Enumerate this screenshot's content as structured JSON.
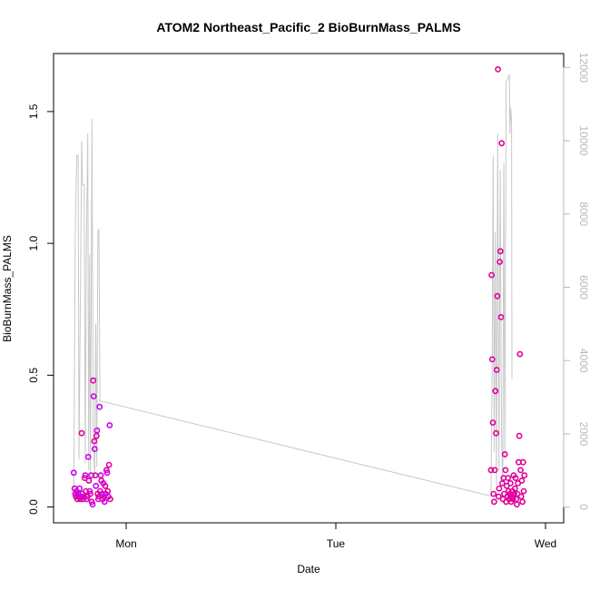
{
  "chart_data": {
    "type": "scatter",
    "title": "ATOM2 Northeast_Pacific_2 BioBurnMass_PALMS",
    "xlabel": "Date",
    "ylabel": "BioBurnMass_PALMS",
    "x_ticks": [
      "Mon",
      "Tue",
      "Wed"
    ],
    "ylim": [
      -0.06,
      1.72
    ],
    "y_ticks": [
      "0.0",
      "0.5",
      "1.0",
      "1.5"
    ],
    "y_tick_values": [
      0.0,
      0.5,
      1.0,
      1.5
    ],
    "y2lim": [
      -430,
      12380
    ],
    "y2_ticks": [
      "0",
      "2000",
      "4000",
      "6000",
      "8000",
      "10000",
      "12000"
    ],
    "y2_tick_values": [
      0,
      2000,
      4000,
      6000,
      8000,
      10000,
      12000
    ],
    "colors": {
      "points": "#e0009a",
      "points_alt": "#cc00ee",
      "line": "#c8c8c8",
      "axis_right": "#b8b8b8"
    },
    "series": [
      {
        "type": "scatter",
        "points": [
          [
            -0.25,
            0.13
          ],
          [
            -0.246,
            0.07
          ],
          [
            -0.243,
            0.05
          ],
          [
            -0.24,
            0.04
          ],
          [
            -0.237,
            0.06
          ],
          [
            -0.233,
            0.03
          ],
          [
            -0.23,
            0.05
          ],
          [
            -0.226,
            0.04
          ],
          [
            -0.222,
            0.07
          ],
          [
            -0.219,
            0.03
          ],
          [
            -0.215,
            0.04
          ],
          [
            -0.212,
            0.28
          ],
          [
            -0.209,
            0.05
          ],
          [
            -0.205,
            0.03
          ],
          [
            -0.202,
            0.04
          ],
          [
            -0.198,
            0.11
          ],
          [
            -0.195,
            0.12
          ],
          [
            -0.192,
            0.06
          ],
          [
            -0.188,
            0.03
          ],
          [
            -0.185,
            0.04
          ],
          [
            -0.181,
            0.19
          ],
          [
            -0.178,
            0.1
          ],
          [
            -0.174,
            0.06
          ],
          [
            -0.171,
            0.05
          ],
          [
            -0.167,
            0.12
          ],
          [
            -0.164,
            0.02
          ],
          [
            -0.16,
            0.01
          ],
          [
            -0.157,
            0.48
          ],
          [
            -0.155,
            0.42
          ],
          [
            -0.152,
            0.25
          ],
          [
            -0.15,
            0.22
          ],
          [
            -0.147,
            0.12
          ],
          [
            -0.144,
            0.08
          ],
          [
            -0.141,
            0.27
          ],
          [
            -0.139,
            0.29
          ],
          [
            -0.136,
            0.05
          ],
          [
            -0.133,
            0.03
          ],
          [
            -0.13,
            0.04
          ],
          [
            -0.127,
            0.38
          ],
          [
            -0.124,
            0.06
          ],
          [
            -0.121,
            0.12
          ],
          [
            -0.118,
            0.1
          ],
          [
            -0.115,
            0.05
          ],
          [
            -0.112,
            0.03
          ],
          [
            -0.109,
            0.09
          ],
          [
            -0.106,
            0.04
          ],
          [
            -0.103,
            0.02
          ],
          [
            -0.1,
            0.08
          ],
          [
            -0.097,
            0.05
          ],
          [
            -0.094,
            0.14
          ],
          [
            -0.091,
            0.13
          ],
          [
            -0.088,
            0.06
          ],
          [
            -0.085,
            0.04
          ],
          [
            -0.082,
            0.16
          ],
          [
            -0.079,
            0.31
          ],
          [
            -0.076,
            0.03
          ],
          [
            1.74,
            0.14
          ],
          [
            1.743,
            0.88
          ],
          [
            1.746,
            0.56
          ],
          [
            1.749,
            0.32
          ],
          [
            1.752,
            0.05
          ],
          [
            1.755,
            0.02
          ],
          [
            1.758,
            0.14
          ],
          [
            1.761,
            0.44
          ],
          [
            1.764,
            0.28
          ],
          [
            1.767,
            0.52
          ],
          [
            1.77,
            0.8
          ],
          [
            1.773,
            1.66
          ],
          [
            1.776,
            0.04
          ],
          [
            1.779,
            0.07
          ],
          [
            1.782,
            0.93
          ],
          [
            1.785,
            0.97
          ],
          [
            1.788,
            0.72
          ],
          [
            1.791,
            1.38
          ],
          [
            1.794,
            0.09
          ],
          [
            1.797,
            0.03
          ],
          [
            1.8,
            0.11
          ],
          [
            1.803,
            0.05
          ],
          [
            1.806,
            0.2
          ],
          [
            1.809,
            0.14
          ],
          [
            1.812,
            0.02
          ],
          [
            1.815,
            0.08
          ],
          [
            1.818,
            0.04
          ],
          [
            1.821,
            0.11
          ],
          [
            1.824,
            0.06
          ],
          [
            1.827,
            0.03
          ],
          [
            1.83,
            0.05
          ],
          [
            1.833,
            0.09
          ],
          [
            1.836,
            0.02
          ],
          [
            1.839,
            0.04
          ],
          [
            1.842,
            0.06
          ],
          [
            1.845,
            0.03
          ],
          [
            1.848,
            0.12
          ],
          [
            1.851,
            0.05
          ],
          [
            1.854,
            0.07
          ],
          [
            1.857,
            0.11
          ],
          [
            1.86,
            0.03
          ],
          [
            1.863,
            0.01
          ],
          [
            1.866,
            0.05
          ],
          [
            1.869,
            0.09
          ],
          [
            1.872,
            0.17
          ],
          [
            1.875,
            0.27
          ],
          [
            1.878,
            0.58
          ],
          [
            1.881,
            0.14
          ],
          [
            1.884,
            0.04
          ],
          [
            1.887,
            0.1
          ],
          [
            1.89,
            0.02
          ],
          [
            1.893,
            0.17
          ],
          [
            1.896,
            0.06
          ],
          [
            1.899,
            0.12
          ]
        ]
      },
      {
        "type": "line",
        "axis": "right",
        "points": [
          [
            -0.25,
            500
          ],
          [
            -0.243,
            7500
          ],
          [
            -0.236,
            9600
          ],
          [
            -0.229,
            9600
          ],
          [
            -0.225,
            1300
          ],
          [
            -0.218,
            5800
          ],
          [
            -0.212,
            10000
          ],
          [
            -0.208,
            8800
          ],
          [
            -0.2,
            8800
          ],
          [
            -0.195,
            1200
          ],
          [
            -0.19,
            7000
          ],
          [
            -0.183,
            10200
          ],
          [
            -0.179,
            1000
          ],
          [
            -0.174,
            6900
          ],
          [
            -0.17,
            700
          ],
          [
            -0.163,
            10600
          ],
          [
            -0.157,
            2000
          ],
          [
            -0.15,
            800
          ],
          [
            -0.145,
            5000
          ],
          [
            -0.14,
            1100
          ],
          [
            -0.135,
            7500
          ],
          [
            -0.13,
            7600
          ],
          [
            -0.125,
            2900
          ],
          [
            1.74,
            300
          ],
          [
            1.745,
            3500
          ],
          [
            1.75,
            9600
          ],
          [
            1.755,
            1500
          ],
          [
            1.76,
            7500
          ],
          [
            1.766,
            600
          ],
          [
            1.772,
            10200
          ],
          [
            1.778,
            1000
          ],
          [
            1.784,
            9200
          ],
          [
            1.79,
            2000
          ],
          [
            1.796,
            600
          ],
          [
            1.801,
            9400
          ],
          [
            1.806,
            1300
          ],
          [
            1.812,
            11600
          ],
          [
            1.82,
            11700
          ],
          [
            1.828,
            11800
          ],
          [
            1.83,
            10200
          ],
          [
            1.834,
            10900
          ],
          [
            1.838,
            10500
          ],
          [
            1.84,
            3500
          ]
        ]
      }
    ]
  }
}
